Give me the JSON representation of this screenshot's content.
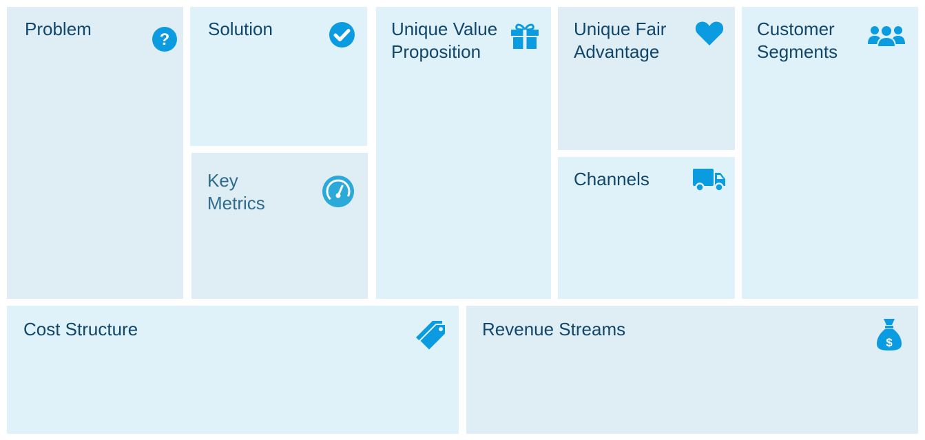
{
  "canvas": {
    "blocks": {
      "problem": {
        "title": "Problem",
        "icon": "question-circle-icon"
      },
      "solution": {
        "title": "Solution",
        "icon": "check-circle-icon"
      },
      "key_metrics": {
        "title": "Key\nMetrics",
        "icon": "speedometer-icon"
      },
      "unique_value_proposition": {
        "title": "Unique Value\nProposition",
        "icon": "gift-icon"
      },
      "unique_fair_advantage": {
        "title": "Unique Fair\nAdvantage",
        "icon": "heart-icon"
      },
      "channels": {
        "title": "Channels",
        "icon": "truck-icon"
      },
      "customer_segments": {
        "title": "Customer\nSegments",
        "icon": "users-icon"
      },
      "cost_structure": {
        "title": "Cost Structure",
        "icon": "tags-icon"
      },
      "revenue_streams": {
        "title": "Revenue Streams",
        "icon": "money-bag-icon"
      }
    },
    "colors": {
      "block_light": "#dff2fa",
      "block_gray": "#dfedf5",
      "title_text": "#11466b",
      "icon_blue": "#0b9be0"
    }
  }
}
